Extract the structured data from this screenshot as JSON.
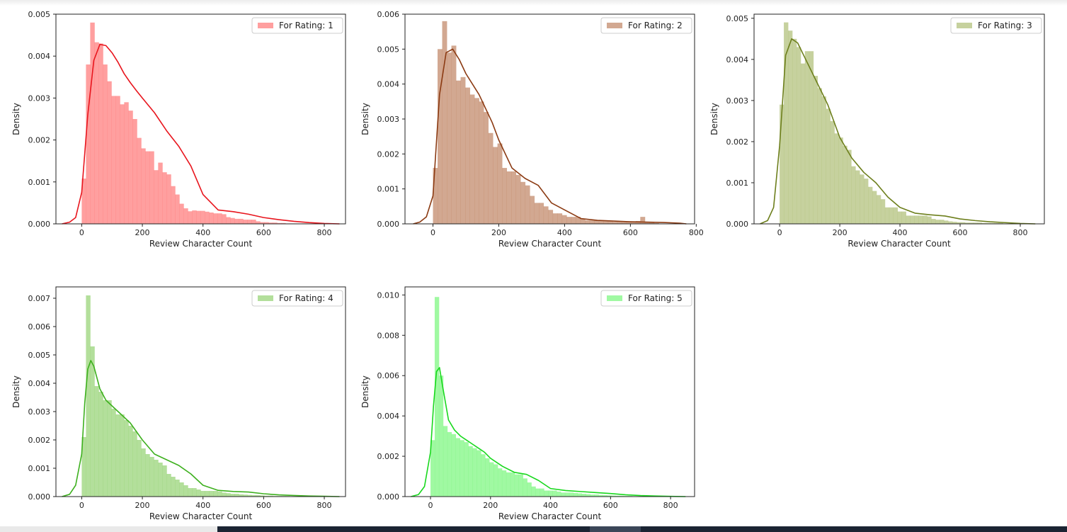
{
  "chart_data": [
    {
      "type": "bar",
      "legend": "For Rating: 1",
      "legend_position": "top-right",
      "color": "#ff7f7f",
      "line_color": "#e8151d",
      "xlabel": "Review Character Count",
      "ylabel": "Density",
      "xlim": [
        -85,
        870
      ],
      "ylim": [
        0,
        0.005
      ],
      "xticks": [
        0,
        200,
        400,
        600,
        800
      ],
      "xtick_labels": [
        "0",
        "200",
        "400",
        "600",
        "800"
      ],
      "yticks": [
        0,
        0.001,
        0.002,
        0.003,
        0.004,
        0.005
      ],
      "ytick_labels": [
        "0.000",
        "0.001",
        "0.002",
        "0.003",
        "0.004",
        "0.005"
      ],
      "bin_width": 14,
      "hist_start": 0,
      "hist": [
        0.00108,
        0.0038,
        0.0048,
        0.00433,
        0.0043,
        0.0038,
        0.0034,
        0.00305,
        0.00305,
        0.00285,
        0.0029,
        0.0027,
        0.0025,
        0.00205,
        0.0018,
        0.00173,
        0.00173,
        0.00128,
        0.00146,
        0.00123,
        0.00118,
        0.0009,
        0.0007,
        0.00048,
        0.00037,
        0.0003,
        0.00032,
        0.00031,
        0.00031,
        0.00029,
        0.00027,
        0.00025,
        0.00025,
        0.00023,
        0.00016,
        0.00014,
        0.00012,
        0.00012,
        0.0001,
        0.0001,
        0.0001,
        6e-05,
        4e-05,
        4e-05,
        3e-05,
        3e-05,
        2e-05,
        2e-05,
        1e-05,
        1e-05,
        1e-05,
        1e-05,
        1e-05,
        1e-05,
        1e-05,
        1e-05,
        1e-05,
        1e-05,
        1e-05,
        0.0
      ],
      "kde": {
        "x": [
          -65,
          -40,
          -20,
          0,
          20,
          40,
          60,
          80,
          100,
          120,
          140,
          160,
          180,
          200,
          240,
          280,
          320,
          360,
          400,
          450,
          500,
          550,
          600,
          650,
          700,
          750,
          800,
          850
        ],
        "y": [
          0.0,
          4e-05,
          0.00015,
          0.00075,
          0.0026,
          0.0039,
          0.00428,
          0.00425,
          0.00408,
          0.00385,
          0.00358,
          0.00337,
          0.00318,
          0.003,
          0.00265,
          0.00222,
          0.00185,
          0.00138,
          0.0007,
          0.00033,
          0.00029,
          0.00023,
          0.00015,
          0.0001,
          6e-05,
          3e-05,
          1e-05,
          0.0
        ]
      }
    },
    {
      "type": "bar",
      "legend": "For Rating: 2",
      "legend_position": "top-right",
      "color": "#c38b6c",
      "line_color": "#8b3a12",
      "xlabel": "Review Character Count",
      "ylabel": "Density",
      "xlim": [
        -85,
        795
      ],
      "ylim": [
        0,
        0.006
      ],
      "xticks": [
        0,
        200,
        400,
        600,
        800
      ],
      "xtick_labels": [
        "0",
        "200",
        "400",
        "600",
        "800"
      ],
      "yticks": [
        0,
        0.001,
        0.002,
        0.003,
        0.004,
        0.005,
        0.006
      ],
      "ytick_labels": [
        "0.000",
        "0.001",
        "0.002",
        "0.003",
        "0.004",
        "0.005",
        "0.006"
      ],
      "bin_width": 14,
      "hist_start": 0,
      "hist": [
        0.0016,
        0.005,
        0.0058,
        0.0049,
        0.0051,
        0.0041,
        0.0042,
        0.0039,
        0.0037,
        0.0036,
        0.0035,
        0.0032,
        0.0026,
        0.0022,
        0.0023,
        0.0016,
        0.0015,
        0.0015,
        0.0014,
        0.0012,
        0.0011,
        0.0008,
        0.0006,
        0.0006,
        0.0005,
        0.0004,
        0.0003,
        0.0003,
        0.00025,
        0.0002,
        0.0002,
        0.0002,
        0.00015,
        0.0001,
        0.0001,
        0.0001,
        0.0001,
        8e-05,
        7e-05,
        6e-05,
        6e-05,
        5e-05,
        5e-05,
        5e-05,
        8e-05,
        0.0002,
        5e-05,
        3e-05,
        2e-05,
        0.0,
        0.0,
        0.0,
        0.0
      ],
      "kde": {
        "x": [
          -60,
          -40,
          -20,
          0,
          20,
          40,
          60,
          80,
          100,
          120,
          140,
          160,
          180,
          200,
          240,
          280,
          320,
          360,
          400,
          450,
          500,
          550,
          600,
          650,
          700,
          750,
          770
        ],
        "y": [
          0.0,
          5e-05,
          0.0002,
          0.0008,
          0.0037,
          0.0049,
          0.005,
          0.0047,
          0.0043,
          0.004,
          0.0037,
          0.0033,
          0.0029,
          0.0024,
          0.0016,
          0.0013,
          0.0011,
          0.0006,
          0.0004,
          0.00015,
          0.0001,
          8e-05,
          6e-05,
          5e-05,
          4e-05,
          2e-05,
          0.0
        ]
      }
    },
    {
      "type": "bar",
      "legend": "For Rating: 3",
      "legend_position": "top-right",
      "color": "#b3c17d",
      "line_color": "#6d7f1c",
      "xlabel": "Review Character Count",
      "ylabel": "Density",
      "xlim": [
        -85,
        880
      ],
      "ylim": [
        0,
        0.0051
      ],
      "xticks": [
        0,
        200,
        400,
        600,
        800
      ],
      "xtick_labels": [
        "0",
        "200",
        "400",
        "600",
        "800"
      ],
      "yticks": [
        0,
        0.001,
        0.002,
        0.003,
        0.004,
        0.005
      ],
      "ytick_labels": [
        "0.000",
        "0.001",
        "0.002",
        "0.003",
        "0.004",
        "0.005"
      ],
      "bin_width": 14,
      "hist_start": 0,
      "hist": [
        0.0029,
        0.0049,
        0.0047,
        0.0045,
        0.0043,
        0.0039,
        0.0042,
        0.0042,
        0.0036,
        0.0033,
        0.0031,
        0.0028,
        0.0025,
        0.0022,
        0.0021,
        0.0019,
        0.0018,
        0.0014,
        0.0013,
        0.0012,
        0.0011,
        0.0009,
        0.0008,
        0.0007,
        0.0006,
        0.0004,
        0.0004,
        0.0004,
        0.0003,
        0.0003,
        0.0002,
        0.0002,
        0.0002,
        0.0002,
        0.0002,
        0.00018,
        0.00012,
        0.0001,
        0.0001,
        8e-05,
        6e-05,
        5e-05,
        4e-05,
        4e-05,
        3e-05,
        3e-05,
        3e-05,
        3e-05,
        2e-05,
        2e-05,
        2e-05,
        2e-05,
        2e-05,
        1e-05,
        1e-05,
        1e-05,
        1e-05,
        1e-05,
        1e-05,
        1e-05
      ],
      "kde": {
        "x": [
          -65,
          -40,
          -20,
          0,
          20,
          40,
          60,
          80,
          100,
          120,
          140,
          160,
          180,
          200,
          240,
          280,
          320,
          360,
          400,
          450,
          500,
          550,
          600,
          650,
          700,
          750,
          800,
          850
        ],
        "y": [
          0.0,
          8e-05,
          0.0004,
          0.0019,
          0.0041,
          0.0045,
          0.0044,
          0.0041,
          0.0038,
          0.0035,
          0.0032,
          0.0029,
          0.0025,
          0.0021,
          0.0016,
          0.00125,
          0.001,
          0.00065,
          0.0004,
          0.00026,
          0.00022,
          0.00019,
          0.00012,
          8e-05,
          5e-05,
          3e-05,
          1e-05,
          0.0
        ]
      }
    },
    {
      "type": "bar",
      "legend": "For Rating: 4",
      "legend_position": "top-right",
      "color": "#99d47a",
      "line_color": "#3db01e",
      "xlabel": "Review Character Count",
      "ylabel": "Density",
      "xlim": [
        -85,
        870
      ],
      "ylim": [
        0,
        0.0074
      ],
      "xticks": [
        0,
        200,
        400,
        600,
        800
      ],
      "xtick_labels": [
        "0",
        "200",
        "400",
        "600",
        "800"
      ],
      "yticks": [
        0,
        0.001,
        0.002,
        0.003,
        0.004,
        0.005,
        0.006,
        0.007
      ],
      "ytick_labels": [
        "0.000",
        "0.001",
        "0.002",
        "0.003",
        "0.004",
        "0.005",
        "0.006",
        "0.007"
      ],
      "bin_width": 14,
      "hist_start": 0,
      "hist": [
        0.0021,
        0.0071,
        0.0053,
        0.0039,
        0.0037,
        0.0034,
        0.0034,
        0.0031,
        0.0029,
        0.0029,
        0.0027,
        0.0025,
        0.0023,
        0.002,
        0.0017,
        0.0015,
        0.0014,
        0.0013,
        0.0012,
        0.0011,
        0.0008,
        0.0007,
        0.0006,
        0.0005,
        0.0004,
        0.0003,
        0.0003,
        0.00025,
        0.0002,
        0.0002,
        0.0002,
        0.0002,
        0.00018,
        0.00014,
        0.00012,
        0.0001,
        0.0001,
        8e-05,
        7e-05,
        6e-05,
        5e-05,
        5e-05,
        4e-05,
        3e-05,
        3e-05,
        2e-05,
        2e-05,
        2e-05,
        2e-05,
        1e-05,
        1e-05,
        1e-05,
        1e-05,
        1e-05,
        1e-05,
        1e-05,
        1e-05,
        1e-05,
        1e-05,
        0.0
      ],
      "kde": {
        "x": [
          -65,
          -40,
          -20,
          0,
          10,
          20,
          30,
          40,
          60,
          80,
          100,
          120,
          140,
          160,
          180,
          200,
          240,
          280,
          320,
          360,
          400,
          450,
          500,
          550,
          600,
          650,
          700,
          750,
          800,
          850
        ],
        "y": [
          0.0,
          8e-05,
          0.0004,
          0.0015,
          0.0033,
          0.0045,
          0.0048,
          0.0046,
          0.0038,
          0.0034,
          0.0032,
          0.003,
          0.0028,
          0.0026,
          0.0023,
          0.002,
          0.0015,
          0.0013,
          0.0011,
          0.0008,
          0.0004,
          0.00022,
          0.00018,
          0.00016,
          0.0001,
          6e-05,
          4e-05,
          2e-05,
          1e-05,
          0.0
        ]
      }
    },
    {
      "type": "bar",
      "legend": "For Rating: 5",
      "legend_position": "top-right",
      "color": "#80f783",
      "line_color": "#18d81d",
      "xlabel": "Review Character Count",
      "ylabel": "Density",
      "xlim": [
        -85,
        880
      ],
      "ylim": [
        0,
        0.0104
      ],
      "xticks": [
        0,
        200,
        400,
        600,
        800
      ],
      "xtick_labels": [
        "0",
        "200",
        "400",
        "600",
        "800"
      ],
      "yticks": [
        0,
        0.002,
        0.004,
        0.006,
        0.008,
        0.01
      ],
      "ytick_labels": [
        "0.000",
        "0.002",
        "0.004",
        "0.006",
        "0.008",
        "0.010"
      ],
      "bin_width": 14,
      "hist_start": 0,
      "hist": [
        0.0028,
        0.0099,
        0.006,
        0.0035,
        0.0032,
        0.0031,
        0.0029,
        0.0028,
        0.0027,
        0.0025,
        0.0024,
        0.0023,
        0.0021,
        0.0019,
        0.0017,
        0.0016,
        0.0014,
        0.0013,
        0.0012,
        0.0012,
        0.0011,
        0.0011,
        0.0009,
        0.0007,
        0.0005,
        0.0004,
        0.0004,
        0.0003,
        0.0003,
        0.0003,
        0.00025,
        0.0002,
        0.0002,
        0.0002,
        0.00018,
        0.00016,
        0.00014,
        0.00012,
        0.0001,
        0.0001,
        8e-05,
        7e-05,
        6e-05,
        5e-05,
        4e-05,
        4e-05,
        3e-05,
        3e-05,
        2e-05,
        2e-05,
        2e-05,
        1e-05,
        1e-05,
        1e-05,
        1e-05,
        1e-05,
        1e-05,
        1e-05,
        1e-05,
        0.0
      ],
      "kde": {
        "x": [
          -65,
          -40,
          -20,
          0,
          10,
          20,
          30,
          40,
          60,
          80,
          100,
          120,
          140,
          160,
          180,
          200,
          240,
          280,
          320,
          360,
          400,
          450,
          500,
          550,
          600,
          650,
          700,
          750,
          800,
          850
        ],
        "y": [
          0.0,
          0.0001,
          0.0005,
          0.0022,
          0.0045,
          0.0062,
          0.0064,
          0.0055,
          0.0038,
          0.0033,
          0.003,
          0.0028,
          0.0026,
          0.0024,
          0.0022,
          0.0019,
          0.0015,
          0.0012,
          0.0011,
          0.0008,
          0.0004,
          0.0003,
          0.00025,
          0.0002,
          0.00015,
          9e-05,
          5e-05,
          3e-05,
          1e-05,
          0.0
        ]
      }
    }
  ]
}
